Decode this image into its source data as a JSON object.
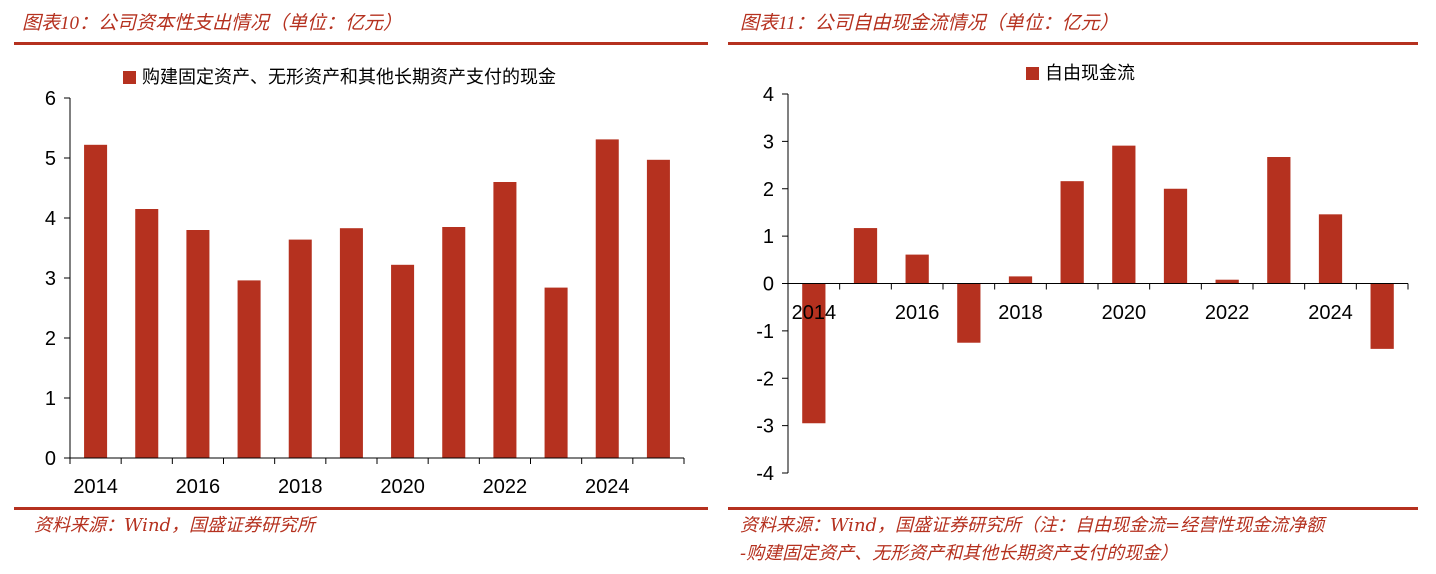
{
  "left": {
    "title_prefix": "图表",
    "title_num": "10",
    "title_rest": "：公司资本性支出情况（单位：亿元）",
    "source": "资料来源：Wind，国盛证券研究所"
  },
  "right": {
    "title_prefix": "图表",
    "title_num": "11",
    "title_rest": "：公司自由现金流情况（单位：亿元）",
    "source_line1": "资料来源：Wind，国盛证券研究所（注：自由现金流=经营性现金流净额",
    "source_line2": "-购建固定资产、无形资产和其他长期资产支付的现金）"
  },
  "colors": {
    "bar": "#b5311f",
    "accent": "#b5311f"
  },
  "chart_data": [
    {
      "type": "bar",
      "categories": [
        "2014",
        "2015",
        "2016",
        "2017",
        "2018",
        "2019",
        "2020",
        "2021",
        "2022",
        "2023",
        "2024",
        "2025"
      ],
      "tick_labels": [
        "2014",
        "",
        "2016",
        "",
        "2018",
        "",
        "2020",
        "",
        "2022",
        "",
        "2024",
        ""
      ],
      "series": [
        {
          "name": "购建固定资产、无形资产和其他长期资产支付的现金",
          "values": [
            5.22,
            4.15,
            3.8,
            2.96,
            3.64,
            3.83,
            3.22,
            3.85,
            4.6,
            2.84,
            5.31,
            4.97
          ]
        }
      ],
      "ylim": [
        0,
        6
      ],
      "yticks": [
        0,
        1,
        2,
        3,
        4,
        5,
        6
      ],
      "legend": "top",
      "grid": false
    },
    {
      "type": "bar",
      "categories": [
        "2014",
        "2015",
        "2016",
        "2017",
        "2018",
        "2019",
        "2020",
        "2021",
        "2022",
        "2023",
        "2024",
        "2025"
      ],
      "tick_labels": [
        "2014",
        "",
        "2016",
        "",
        "2018",
        "",
        "2020",
        "",
        "2022",
        "",
        "2024",
        ""
      ],
      "series": [
        {
          "name": "自由现金流",
          "values": [
            -2.95,
            1.17,
            0.61,
            -1.25,
            0.15,
            2.16,
            2.91,
            2.0,
            0.08,
            2.67,
            1.46,
            -1.38
          ]
        }
      ],
      "ylim": [
        -4,
        4
      ],
      "yticks": [
        -4,
        -3,
        -2,
        -1,
        0,
        1,
        2,
        3,
        4
      ],
      "legend": "top",
      "grid": false
    }
  ]
}
